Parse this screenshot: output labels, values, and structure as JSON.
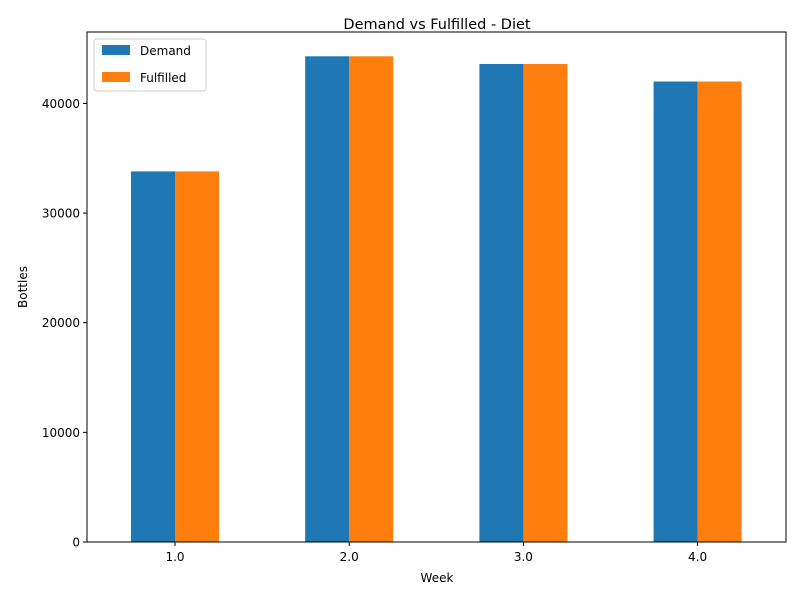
{
  "chart_data": {
    "type": "bar",
    "title": "Demand vs Fulfilled - Diet",
    "xlabel": "Week",
    "ylabel": "Bottles",
    "categories": [
      "1.0",
      "2.0",
      "3.0",
      "4.0"
    ],
    "series": [
      {
        "name": "Demand",
        "color": "#1f77b4",
        "values": [
          33800,
          44300,
          43600,
          42000
        ]
      },
      {
        "name": "Fulfilled",
        "color": "#ff7f0e",
        "values": [
          33800,
          44300,
          43600,
          42000
        ]
      }
    ],
    "ylim": [
      0,
      46515
    ],
    "yticks": [
      0,
      10000,
      20000,
      30000,
      40000
    ],
    "ytick_labels": [
      "0",
      "10000",
      "20000",
      "30000",
      "40000"
    ],
    "grid": false,
    "legend_position": "upper-left"
  }
}
